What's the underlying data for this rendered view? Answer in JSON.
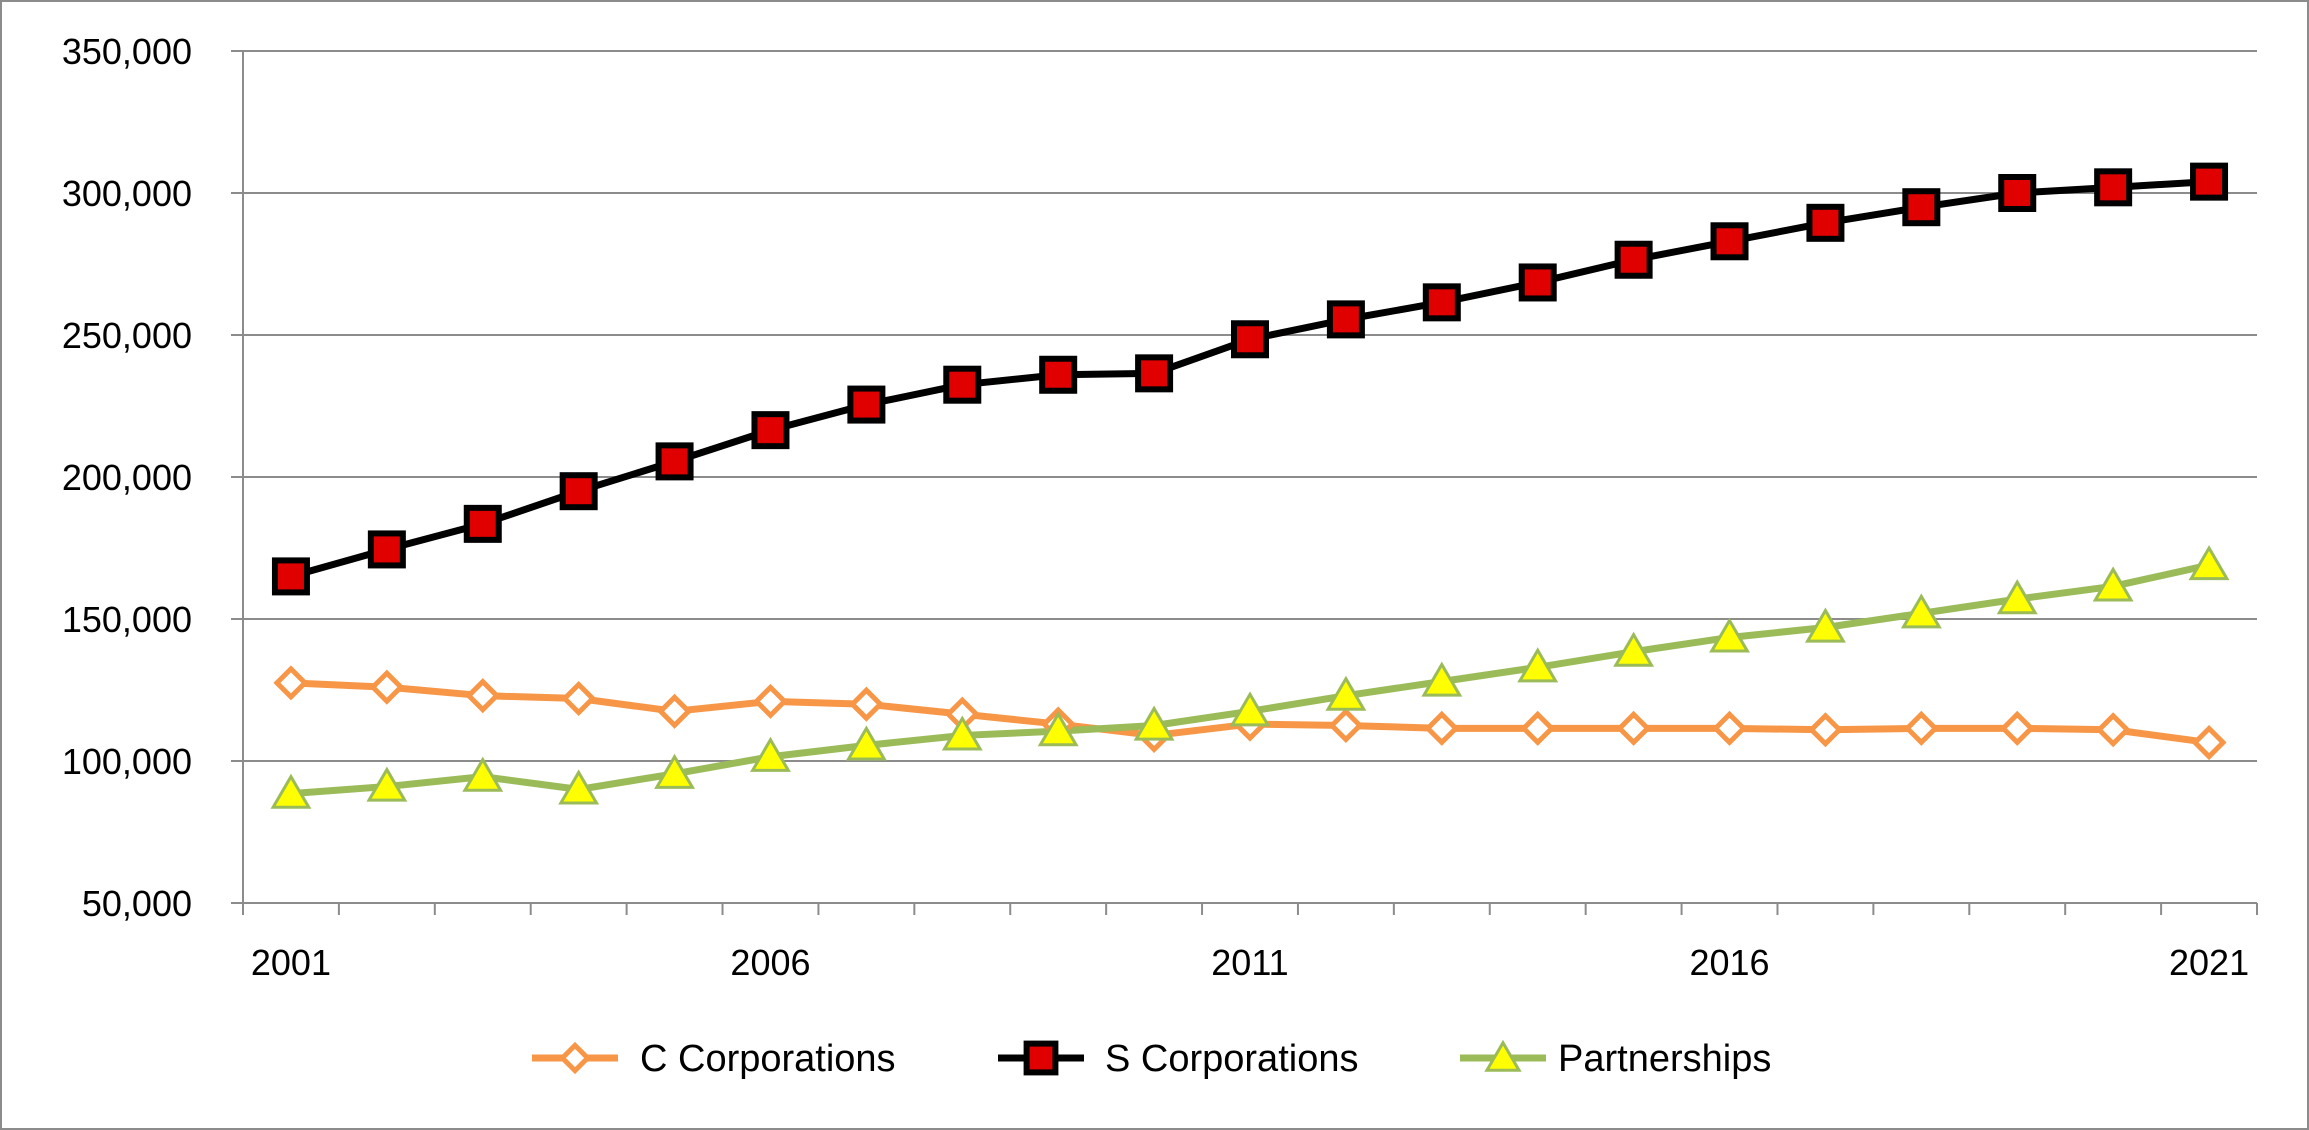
{
  "chart_data": {
    "type": "line",
    "x": [
      2001,
      2002,
      2003,
      2004,
      2005,
      2006,
      2007,
      2008,
      2009,
      2010,
      2011,
      2012,
      2013,
      2014,
      2015,
      2016,
      2017,
      2018,
      2019,
      2020,
      2021
    ],
    "x_tick_labels": [
      "2001",
      "2006",
      "2011",
      "2016",
      "2021"
    ],
    "y_tick_labels": [
      "50,000",
      "100,000",
      "150,000",
      "200,000",
      "250,000",
      "300,000",
      "350,000"
    ],
    "ylim": [
      50000,
      350000
    ],
    "xlim": [
      2000.5,
      2021.5
    ],
    "grid": "horizontal",
    "legend_position": "bottom",
    "series": [
      {
        "name": "C Corporations",
        "color": "#f79646",
        "marker": "diamond-open",
        "values": [
          127500,
          126000,
          123000,
          122000,
          117500,
          121000,
          120000,
          116500,
          113000,
          109000,
          113000,
          112500,
          111500,
          111500,
          111500,
          111500,
          111000,
          111500,
          111500,
          111000,
          106500
        ]
      },
      {
        "name": "S Corporations",
        "color": "#000000",
        "marker_fill": "#e00000",
        "marker": "square",
        "values": [
          165000,
          174500,
          183500,
          195000,
          205500,
          216500,
          225500,
          232500,
          236000,
          236500,
          248500,
          255500,
          261500,
          268500,
          276500,
          283000,
          289500,
          295000,
          300000,
          302000,
          304000
        ]
      },
      {
        "name": "Partnerships",
        "color": "#9bbb59",
        "marker_fill": "#ffff00",
        "marker": "triangle",
        "values": [
          88500,
          91000,
          94500,
          90000,
          95500,
          101500,
          105500,
          109000,
          110500,
          112500,
          117500,
          123000,
          128000,
          133000,
          138500,
          143500,
          147000,
          152000,
          157000,
          161500,
          169000
        ]
      }
    ]
  }
}
